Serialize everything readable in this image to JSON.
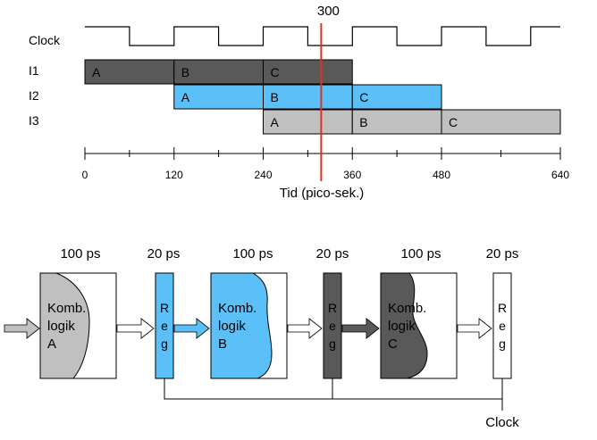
{
  "timing": {
    "marker_label": "300",
    "marker_value": 300,
    "signals": [
      "Clock",
      "I1",
      "I2",
      "I3"
    ],
    "rows": [
      {
        "name": "I1",
        "color": "#595959",
        "segments": [
          {
            "label": "A",
            "start": 0,
            "end": 120
          },
          {
            "label": "B",
            "start": 120,
            "end": 240
          },
          {
            "label": "C",
            "start": 240,
            "end": 360
          }
        ]
      },
      {
        "name": "I2",
        "color": "#5bc0f8",
        "segments": [
          {
            "label": "A",
            "start": 120,
            "end": 240
          },
          {
            "label": "B",
            "start": 240,
            "end": 360
          },
          {
            "label": "C",
            "start": 360,
            "end": 480
          }
        ]
      },
      {
        "name": "I3",
        "color": "#c0c0c0",
        "segments": [
          {
            "label": "A",
            "start": 240,
            "end": 360
          },
          {
            "label": "B",
            "start": 360,
            "end": 480
          },
          {
            "label": "C",
            "start": 480,
            "end": 640
          }
        ]
      }
    ],
    "clock_period": 120,
    "axis": {
      "ticks": [
        "0",
        "120",
        "240",
        "360",
        "480",
        "640"
      ],
      "tick_values": [
        0,
        120,
        240,
        360,
        480,
        640
      ],
      "label": "Tid (pico-sek.)",
      "range": [
        0,
        640
      ]
    }
  },
  "pipeline": {
    "stages": [
      {
        "delay": "100 ps",
        "text": [
          "Komb.",
          "logik",
          "A"
        ],
        "color": "#c0c0c0"
      },
      {
        "delay": "20 ps",
        "reg": [
          "R",
          "e",
          "g"
        ],
        "color": "#5bc0f8"
      },
      {
        "delay": "100 ps",
        "text": [
          "Komb.",
          "logik",
          "B"
        ],
        "color": "#5bc0f8"
      },
      {
        "delay": "20 ps",
        "reg": [
          "R",
          "e",
          "g"
        ],
        "color": "#595959"
      },
      {
        "delay": "100 ps",
        "text": [
          "Komb.",
          "logik",
          "C"
        ],
        "color": "#595959"
      },
      {
        "delay": "20 ps",
        "reg": [
          "R",
          "e",
          "g"
        ],
        "color": "#ffffff"
      }
    ],
    "clock_label": "Clock"
  },
  "colors": {
    "marker": "#e03020",
    "stroke": "#000000"
  }
}
